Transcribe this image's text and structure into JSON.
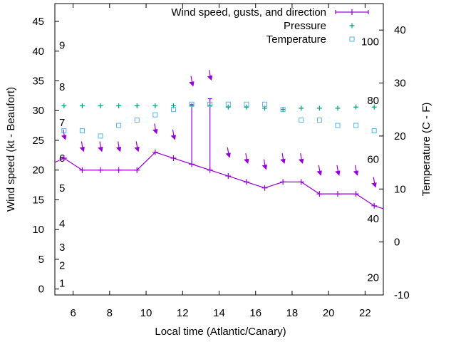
{
  "chart_data": {
    "type": "line",
    "xlabel": "Local time (Atlantic/Canary)",
    "ylabel_left": "Wind speed (kt - Beaufort)",
    "ylabel_right": "Temperature (C - F)",
    "xlim": [
      5,
      23
    ],
    "ylim_left": [
      -1,
      48
    ],
    "ylim_right": [
      -10,
      45
    ],
    "grid": false,
    "legend_position": "top-right",
    "x_ticks": [
      6,
      8,
      10,
      12,
      14,
      16,
      18,
      20,
      22
    ],
    "y_left_ticks": [
      0,
      5,
      10,
      15,
      20,
      25,
      30,
      35,
      40,
      45
    ],
    "y_right_ticks": [
      -10,
      0,
      10,
      20,
      30,
      40
    ],
    "beaufort_labels": [
      {
        "label": "1",
        "kt": 1
      },
      {
        "label": "2",
        "kt": 4
      },
      {
        "label": "3",
        "kt": 7
      },
      {
        "label": "4",
        "kt": 11
      },
      {
        "label": "5",
        "kt": 17
      },
      {
        "label": "6",
        "kt": 22
      },
      {
        "label": "7",
        "kt": 28
      },
      {
        "label": "8",
        "kt": 34
      },
      {
        "label": "9",
        "kt": 41
      }
    ],
    "fahrenheit_labels": [
      {
        "label": "20",
        "c": -6.7
      },
      {
        "label": "40",
        "c": 4.4
      },
      {
        "label": "60",
        "c": 15.6
      },
      {
        "label": "80",
        "c": 26.7
      },
      {
        "label": "100",
        "c": 37.8
      }
    ],
    "series": [
      {
        "name": "Wind speed, gusts, and direction",
        "color": "#9400d3",
        "x": [
          5.0,
          5.5,
          6.5,
          7.5,
          8.5,
          9.5,
          10.5,
          11.5,
          12.5,
          13.5,
          14.5,
          15.5,
          16.5,
          17.5,
          18.5,
          19.5,
          20.5,
          21.5,
          22.5,
          23.0
        ],
        "values": [
          21.3,
          22,
          20,
          20,
          20,
          20,
          23,
          22,
          21,
          20,
          19,
          18,
          17,
          18,
          18,
          16,
          16,
          16,
          14,
          13.5
        ]
      },
      {
        "name": "gusts",
        "color": "#9400d3",
        "x": [
          12.5,
          13.5
        ],
        "values": [
          31,
          32
        ]
      },
      {
        "name": "direction",
        "color": "#9400d3",
        "x": [
          5.5,
          6.5,
          7.5,
          8.5,
          9.5,
          10.5,
          11.5,
          12.5,
          13.5,
          14.5,
          15.5,
          16.5,
          17.5,
          18.5,
          19.5,
          20.5,
          21.5,
          22.5
        ],
        "values": [
          25.5,
          23.5,
          23.5,
          23.5,
          23.5,
          26.5,
          25.5,
          34.5,
          35.5,
          22.5,
          21.5,
          20.5,
          21.5,
          21.5,
          19.5,
          19.5,
          19.5,
          17.5
        ]
      },
      {
        "name": "Pressure",
        "color": "#009e73",
        "x": [
          5.5,
          6.5,
          7.5,
          8.5,
          9.5,
          10.5,
          11.5,
          12.5,
          13.5,
          14.5,
          15.5,
          16.5,
          17.5,
          18.5,
          19.5,
          20.5,
          21.5,
          22.5
        ],
        "values": [
          30.8,
          30.8,
          30.8,
          30.8,
          30.8,
          30.8,
          30.8,
          30.8,
          30.8,
          30.6,
          30.6,
          30.4,
          30.2,
          30.4,
          30.4,
          30.4,
          30.6,
          30.6
        ]
      },
      {
        "name": "Temperature",
        "color": "#56b4e9",
        "axis": "right",
        "x": [
          5.5,
          6.5,
          7.5,
          8.5,
          9.5,
          10.5,
          11.5,
          12.5,
          13.5,
          14.5,
          15.5,
          16.5,
          17.5,
          18.5,
          19.5,
          20.5,
          21.5,
          22.5
        ],
        "values": [
          21,
          21,
          20,
          22,
          23,
          24,
          25,
          26,
          26,
          26,
          26,
          26,
          25,
          23,
          23,
          22,
          22,
          21
        ]
      }
    ]
  }
}
